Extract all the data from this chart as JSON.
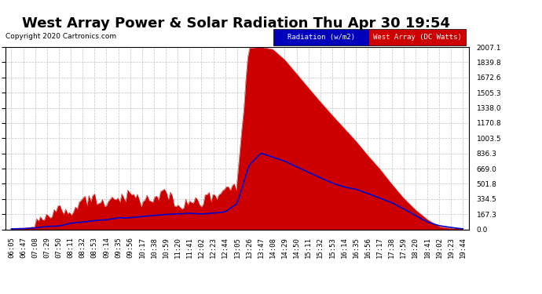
{
  "title": "West Array Power & Solar Radiation Thu Apr 30 19:54",
  "copyright": "Copyright 2020 Cartronics.com",
  "legend_radiation": "Radiation (w/m2)",
  "legend_west": "West Array (DC Watts)",
  "legend_radiation_bg": "#0000bb",
  "legend_west_bg": "#cc0000",
  "y_max": 2007.1,
  "y_min": 0.0,
  "y_ticks": [
    0.0,
    167.3,
    334.5,
    501.8,
    669.0,
    836.3,
    1003.5,
    1170.8,
    1338.0,
    1505.3,
    1672.6,
    1839.8,
    2007.1
  ],
  "bg_color": "#ffffff",
  "plot_bg": "#ffffff",
  "grid_color": "#bbbbbb",
  "radiation_color": "#0000cc",
  "west_fill_color": "#cc0000",
  "title_fontsize": 13,
  "tick_fontsize": 6.5,
  "x_labels": [
    "06:05",
    "06:47",
    "07:08",
    "07:29",
    "07:50",
    "08:11",
    "08:32",
    "08:53",
    "09:14",
    "09:35",
    "09:56",
    "10:17",
    "10:38",
    "10:59",
    "11:20",
    "11:41",
    "12:02",
    "12:23",
    "12:44",
    "13:05",
    "13:26",
    "13:47",
    "14:08",
    "14:29",
    "14:50",
    "15:11",
    "15:32",
    "15:53",
    "16:14",
    "16:35",
    "16:56",
    "17:17",
    "17:38",
    "17:59",
    "18:20",
    "18:41",
    "19:02",
    "19:23",
    "19:44"
  ],
  "west_data": [
    5,
    8,
    20,
    120,
    200,
    170,
    240,
    280,
    220,
    260,
    300,
    240,
    280,
    310,
    260,
    300,
    280,
    310,
    340,
    360,
    1900,
    2007,
    1950,
    1850,
    1700,
    1550,
    1400,
    1250,
    1100,
    950,
    800,
    650,
    500,
    350,
    200,
    100,
    30,
    10,
    5
  ],
  "west_noise": [
    0,
    0,
    10,
    80,
    120,
    60,
    100,
    90,
    70,
    80,
    110,
    70,
    90,
    100,
    80,
    90,
    80,
    90,
    90,
    100,
    100,
    0,
    50,
    30,
    20,
    20,
    20,
    20,
    20,
    20,
    20,
    20,
    20,
    20,
    20,
    10,
    5,
    5,
    0
  ],
  "radiation_data": [
    5,
    8,
    15,
    30,
    45,
    60,
    75,
    90,
    105,
    120,
    135,
    148,
    158,
    165,
    170,
    172,
    175,
    178,
    200,
    280,
    700,
    836,
    800,
    750,
    690,
    620,
    560,
    510,
    470,
    440,
    400,
    350,
    290,
    220,
    150,
    80,
    40,
    20,
    5
  ]
}
